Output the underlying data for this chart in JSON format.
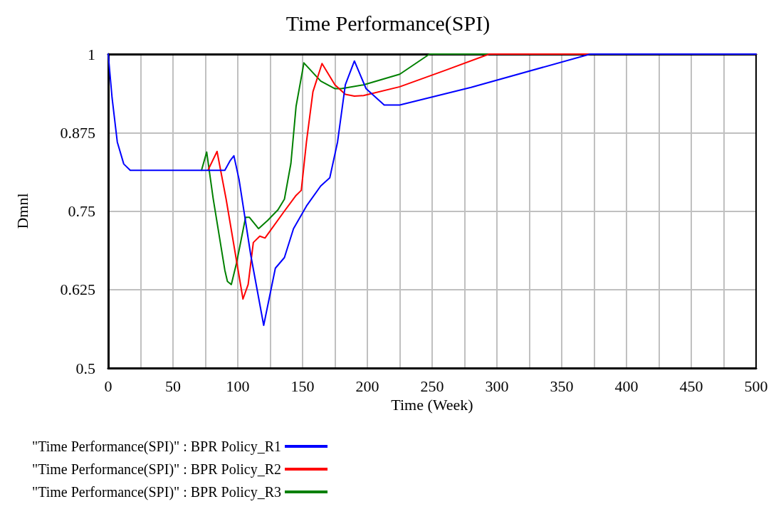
{
  "chart_data": {
    "type": "line",
    "title": "Time Performance(SPI)",
    "xlabel": "Time (Week)",
    "ylabel": "Dmnl",
    "xlim": [
      0,
      500
    ],
    "xticks": [
      0,
      {
        "value": 25,
        "label": null
      },
      50,
      {
        "value": 75,
        "label": null
      },
      100,
      {
        "value": 125,
        "label": null
      },
      150,
      {
        "value": 175,
        "label": null
      },
      200,
      {
        "value": 225,
        "label": null
      },
      250,
      {
        "value": 275,
        "label": null
      },
      300,
      {
        "value": 325,
        "label": null
      },
      350,
      {
        "value": 375,
        "label": null
      },
      400,
      {
        "value": 425,
        "label": null
      },
      450,
      {
        "value": 475,
        "label": null
      },
      500
    ],
    "ylim": [
      0.5,
      1
    ],
    "yticks": [
      0.5,
      0.625,
      0.75,
      0.875,
      1
    ],
    "grid": true,
    "legend": "bottom",
    "marker": "none",
    "line_style": "solid",
    "series": [
      {
        "name": "\"Time Performance(SPI)\" : BPR Policy_R1",
        "color": "#0000ff",
        "x": [
          0,
          3,
          7,
          12,
          17,
          30,
          90,
          94,
          97,
          101,
          110,
          120,
          129,
          136,
          143,
          153,
          164,
          171,
          177,
          183,
          190,
          199,
          213,
          225,
          280,
          372,
          500
        ],
        "values": [
          1,
          0.93,
          0.86,
          0.825,
          0.815,
          0.815,
          0.815,
          0.83,
          0.838,
          0.8,
          0.68,
          0.568,
          0.659,
          0.676,
          0.722,
          0.758,
          0.79,
          0.803,
          0.86,
          0.951,
          0.989,
          0.945,
          0.919,
          0.919,
          0.947,
          1,
          1
        ]
      },
      {
        "name": "\"Time Performance(SPI)\" : BPR Policy_R2",
        "color": "#ff0000",
        "x": [
          77,
          84,
          91,
          104,
          108,
          112,
          117,
          121,
          136,
          145,
          149,
          153,
          158,
          165,
          175,
          183,
          190,
          197,
          225,
          260,
          294,
          500
        ],
        "values": [
          0.815,
          0.845,
          0.769,
          0.61,
          0.633,
          0.7,
          0.71,
          0.707,
          0.75,
          0.775,
          0.783,
          0.86,
          0.94,
          0.985,
          0.951,
          0.936,
          0.933,
          0.934,
          0.948,
          0.974,
          1,
          1
        ]
      },
      {
        "name": "\"Time Performance(SPI)\" : BPR Policy_R3",
        "color": "#008000",
        "x": [
          72,
          76,
          81,
          90,
          92,
          95,
          99,
          106,
          109,
          116,
          123,
          131,
          136,
          141,
          145,
          150,
          151,
          164,
          175,
          180,
          197,
          225,
          248,
          500
        ],
        "values": [
          0.815,
          0.844,
          0.77,
          0.656,
          0.638,
          0.633,
          0.667,
          0.74,
          0.74,
          0.722,
          0.735,
          0.752,
          0.769,
          0.826,
          0.917,
          0.974,
          0.986,
          0.957,
          0.945,
          0.945,
          0.951,
          0.968,
          1,
          1
        ]
      }
    ]
  }
}
